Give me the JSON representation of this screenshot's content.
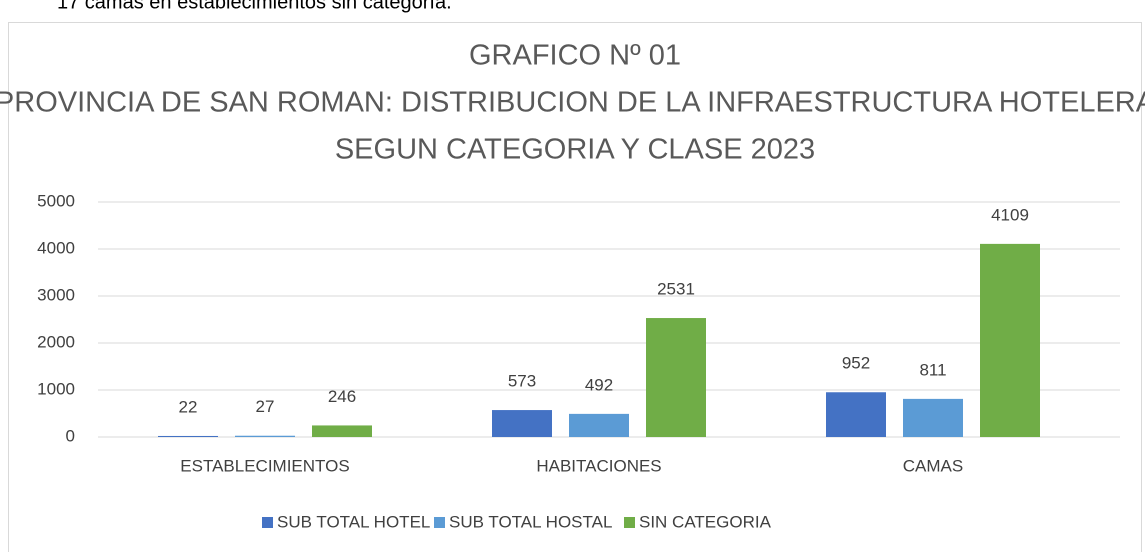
{
  "text_above": "17 camas en establecimientos sin categoría.",
  "chart_data": {
    "type": "bar",
    "title": [
      "GRAFICO Nº 01",
      "PROVINCIA DE SAN ROMAN: DISTRIBUCION DE LA INFRAESTRUCTURA HOTELERA",
      "SEGUN CATEGORIA Y CLASE 2023"
    ],
    "categories": [
      "ESTABLECIMIENTOS",
      "HABITACIONES",
      "CAMAS"
    ],
    "series": [
      {
        "name": "SUB TOTAL HOTEL",
        "color": "#4472c4",
        "values": [
          22,
          573,
          952
        ]
      },
      {
        "name": "SUB TOTAL HOSTAL",
        "color": "#5b9bd5",
        "values": [
          27,
          492,
          811
        ]
      },
      {
        "name": "SIN CATEGORIA",
        "color": "#70ad47",
        "values": [
          246,
          2531,
          4109
        ]
      }
    ],
    "ylim": [
      0,
      5000
    ],
    "yticks": [
      0,
      1000,
      2000,
      3000,
      4000,
      5000
    ],
    "grid": true,
    "legend": "bottom"
  }
}
